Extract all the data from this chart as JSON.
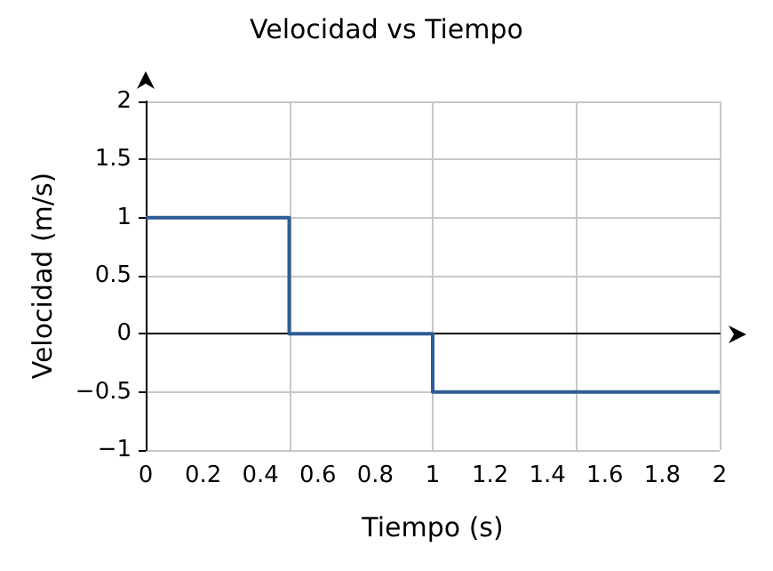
{
  "chart_data": {
    "type": "step",
    "title": "Velocidad vs Tiempo",
    "xlabel": "Tiempo (s)",
    "ylabel": "Velocidad (m/s)",
    "x": [
      0,
      0.5,
      1,
      2
    ],
    "series": [
      {
        "color": "#2f5c94",
        "values": [
          1,
          0,
          -0.5,
          -0.5
        ]
      }
    ],
    "xlim": [
      0,
      2
    ],
    "xticks": [
      0,
      0.2,
      0.4,
      0.6,
      0.8,
      1,
      1.2,
      1.4,
      1.6,
      1.8,
      2
    ],
    "ylim": [
      -1,
      2
    ],
    "yticks": [
      {
        "value": -1,
        "label": "−1"
      },
      {
        "value": -0.5,
        "label": "−0.5"
      },
      0,
      0.5,
      1,
      1.5,
      2
    ],
    "grid": true,
    "marker": "none",
    "line_style": "solid"
  }
}
